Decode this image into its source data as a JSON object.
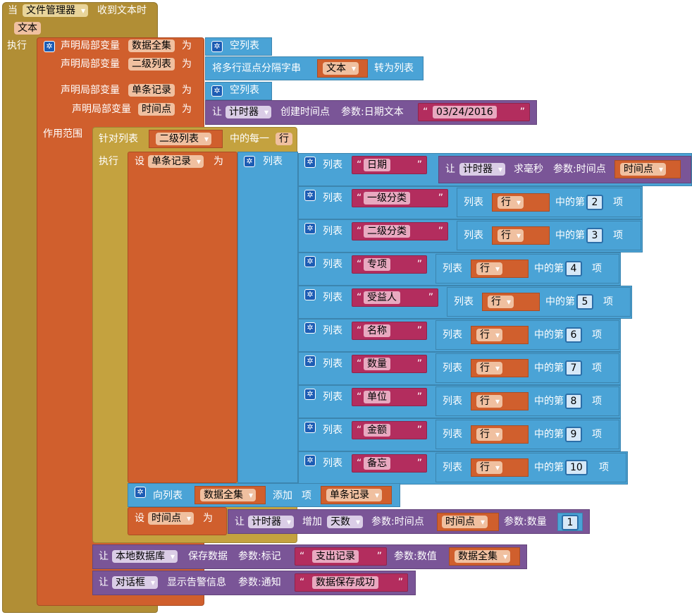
{
  "event": {
    "when": "当",
    "component": "文件管理器",
    "event_name": "收到文本时",
    "param": "文本",
    "do": "执行"
  },
  "local_vars": {
    "declare": "声明局部变量",
    "as": "为",
    "scope": "作用范围",
    "v1": {
      "name": "数据全集",
      "value": "空列表"
    },
    "v2": {
      "name": "二级列表",
      "split_prefix": "将多行逗点分隔字串",
      "split_arg": "文本",
      "split_suffix": "转为列表"
    },
    "v3": {
      "name": "单条记录",
      "value": "空列表"
    },
    "v4": {
      "name": "时间点",
      "let": "让",
      "component": "计时器",
      "method": "创建时间点",
      "param": "参数:日期文本",
      "date": "03/24/2016"
    }
  },
  "foreach": {
    "prefix": "针对列表",
    "list": "二级列表",
    "suffix": "中的每一",
    "item": "行",
    "do": "执行"
  },
  "set_record": {
    "set": "设",
    "var": "单条记录",
    "to": "为",
    "list_label": "列表"
  },
  "record_rows": {
    "row_label": "列表",
    "ms": {
      "let": "让",
      "component": "计时器",
      "method": "求毫秒",
      "param": "参数:时间点",
      "arg": "时间点"
    },
    "index_prefix": "列表",
    "index_of": "中的第",
    "index_suffix": "项",
    "index_var": "行",
    "items": [
      {
        "key": "日期"
      },
      {
        "key": "一级分类",
        "idx": "2"
      },
      {
        "key": "二级分类",
        "idx": "3"
      },
      {
        "key": "专项",
        "idx": "4"
      },
      {
        "key": "受益人",
        "idx": "5"
      },
      {
        "key": "名称",
        "idx": "6"
      },
      {
        "key": "数量",
        "idx": "7"
      },
      {
        "key": "单位",
        "idx": "8"
      },
      {
        "key": "金额",
        "idx": "9"
      },
      {
        "key": "备忘",
        "idx": "10"
      }
    ]
  },
  "append": {
    "to_list": "向列表",
    "list": "数据全集",
    "add": "添加",
    "item": "项",
    "value": "单条记录"
  },
  "set_time": {
    "set": "设",
    "var": "时间点",
    "to": "为",
    "let": "让",
    "component": "计时器",
    "method": "增加",
    "unit": "天数",
    "p1": "参数:时间点",
    "p1v": "时间点",
    "p2": "参数:数量",
    "amount": "1"
  },
  "tinydb": {
    "let": "让",
    "component": "本地数据库",
    "method": "保存数据",
    "p1": "参数:标记",
    "tag": "支出记录",
    "p2": "参数:数值",
    "value": "数据全集"
  },
  "notifier": {
    "let": "让",
    "component": "对话框",
    "method": "显示告警信息",
    "p": "参数:通知",
    "msg": "数据保存成功"
  },
  "colors": {
    "event": "#b18e35",
    "variable": "#d05f2d",
    "list": "#4aa3d6",
    "component": "#7a5597",
    "text": "#b32d5e"
  }
}
